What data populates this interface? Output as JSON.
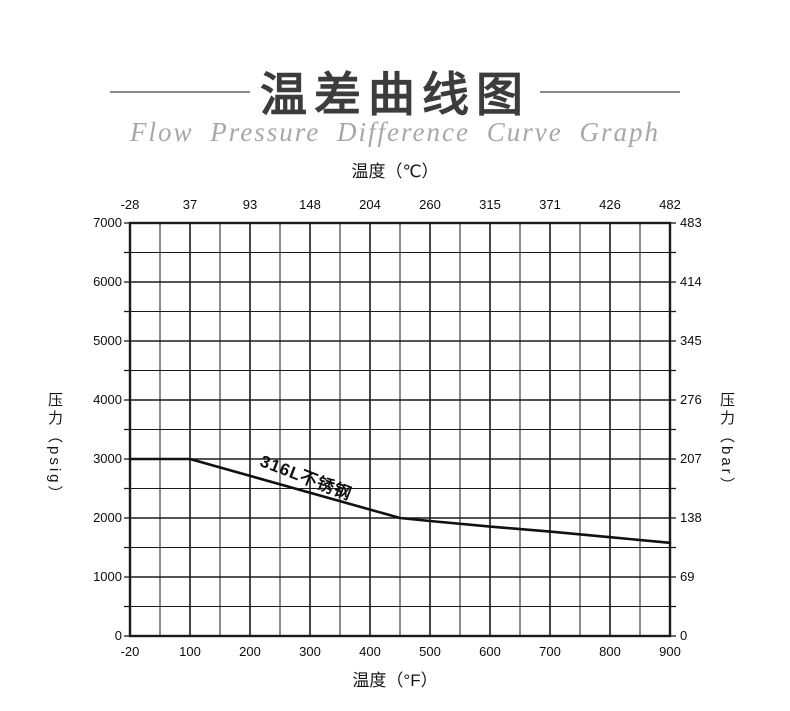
{
  "header": {
    "title": "温差曲线图",
    "subtitle": "Flow Pressure Difference Curve Graph"
  },
  "chart_data": {
    "type": "line",
    "title": "温差曲线图",
    "subtitle": "Flow Pressure Difference Curve Graph",
    "top_axis": {
      "label": "温度（℃）",
      "ticks": [
        "-28",
        "37",
        "93",
        "148",
        "204",
        "260",
        "315",
        "371",
        "426",
        "482"
      ]
    },
    "bottom_axis": {
      "label": "温度（°F）",
      "ticks": [
        "-20",
        "100",
        "200",
        "300",
        "400",
        "500",
        "600",
        "700",
        "800",
        "900"
      ],
      "range_F": [
        -20,
        900
      ]
    },
    "left_axis": {
      "label": "压力（psig）",
      "ticks": [
        "7000",
        "6000",
        "5000",
        "4000",
        "3000",
        "2000",
        "1000",
        "0"
      ],
      "range": [
        0,
        7000
      ]
    },
    "right_axis": {
      "label": "压力（bar）",
      "ticks": [
        "483",
        "414",
        "345",
        "276",
        "207",
        "138",
        "69",
        "0"
      ],
      "range": [
        0,
        483
      ]
    },
    "grid": {
      "on": true,
      "x_minor_per_major": 2,
      "y_minor_per_major": 2,
      "line_color": "#1a1a1a"
    },
    "series": [
      {
        "name": "316L不锈钢",
        "color": "#111111",
        "points_F_psig": [
          [
            -20,
            3000
          ],
          [
            100,
            3000
          ],
          [
            450,
            2000
          ],
          [
            500,
            1950
          ],
          [
            600,
            1855
          ],
          [
            700,
            1770
          ],
          [
            800,
            1675
          ],
          [
            900,
            1580
          ]
        ]
      }
    ]
  },
  "colors": {
    "title": "#3e3b3b",
    "subtitle": "#a9a6a6",
    "rule": "#8a8a8a",
    "axis_text": "#0d0d0d",
    "curve": "#111111"
  }
}
